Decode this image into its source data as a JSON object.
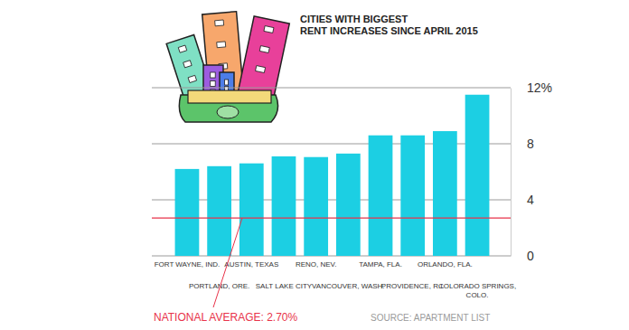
{
  "chart_data": {
    "type": "bar",
    "title": "CITIES WITH BIGGEST RENT INCREASES SINCE APRIL 2015",
    "categories": [
      "FORT WAYNE, IND.",
      "PORTLAND, ORE.",
      "AUSTIN, TEXAS",
      "SALT LAKE CITY",
      "RENO, NEV.",
      "VANCOUVER, WASH.",
      "TAMPA, FLA.",
      "PROVIDENCE, R.I.",
      "ORLANDO, FLA.",
      "COLORADO SPRINGS, COLO."
    ],
    "values": [
      6.2,
      6.4,
      6.6,
      7.1,
      7.05,
      7.3,
      8.6,
      8.6,
      8.9,
      11.5
    ],
    "color": "#1ccfe3",
    "ylim": [
      0,
      12
    ],
    "yticks": [
      0,
      4,
      8,
      {
        "value": 12,
        "label": "12%"
      }
    ],
    "grid": true,
    "annotations": [
      {
        "label": "NATIONAL AVERAGE: 2.70%",
        "value": 2.7,
        "color": "#e8334a"
      }
    ],
    "source": "SOURCE: APARTMENT LIST"
  }
}
